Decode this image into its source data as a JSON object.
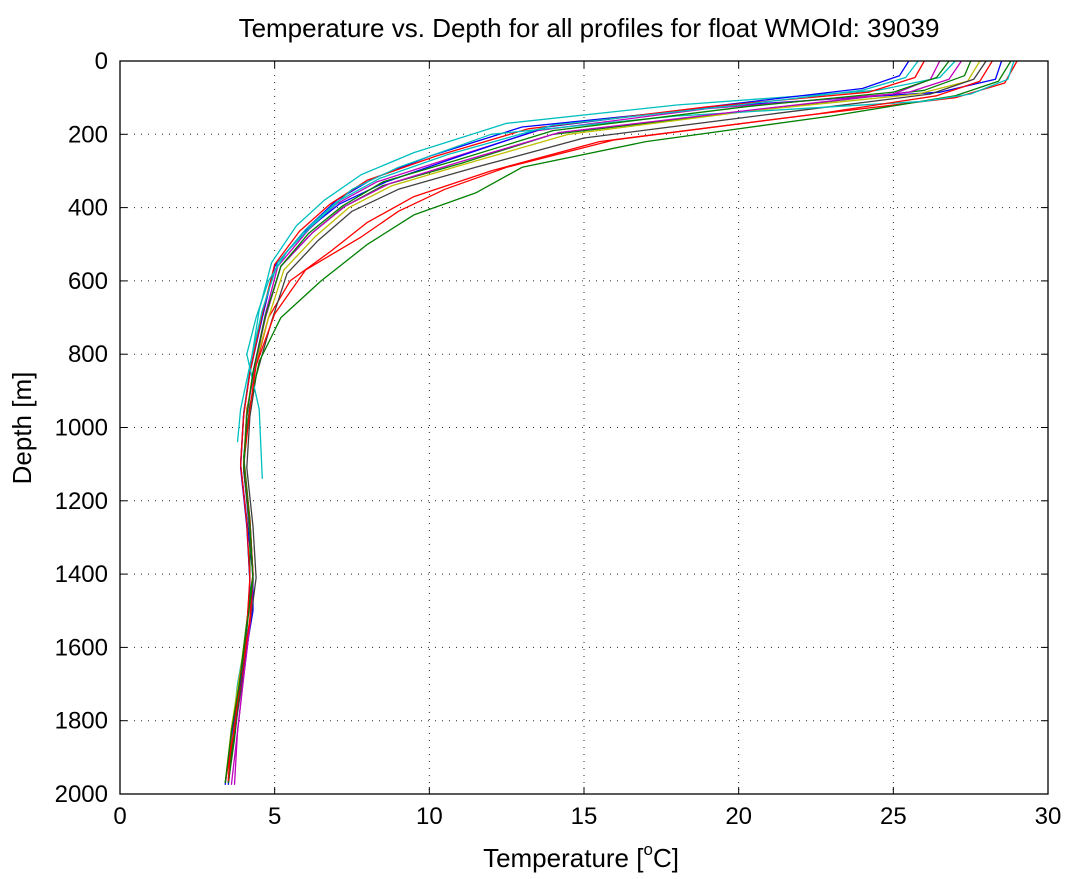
{
  "chart_data": {
    "type": "line",
    "title": "Temperature vs. Depth for all profiles for float WMOId: 39039",
    "xlabel_main": "Temperature [",
    "xlabel_sup": "o",
    "xlabel_tail": "C]",
    "ylabel": "Depth [m]",
    "xlim": [
      0,
      30
    ],
    "ylim": [
      0,
      2000
    ],
    "y_reversed": true,
    "grid": true,
    "x_ticks": [
      "0",
      "5",
      "10",
      "15",
      "20",
      "25",
      "30"
    ],
    "y_ticks": [
      "0",
      "200",
      "400",
      "600",
      "800",
      "1000",
      "1200",
      "1400",
      "1600",
      "1800",
      "2000"
    ],
    "series": [
      {
        "color": "#0000ff",
        "x": [
          28.5,
          28.3,
          26.5,
          20.0,
          13.0,
          10.0,
          8.2,
          7.0,
          6.0,
          5.0,
          4.6,
          4.2,
          4.0,
          3.9,
          4.1,
          4.3,
          4.3,
          4.1,
          3.8,
          3.6,
          3.5
        ],
        "y": [
          0,
          50,
          85,
          120,
          180,
          260,
          320,
          380,
          460,
          560,
          700,
          850,
          960,
          1100,
          1250,
          1400,
          1500,
          1600,
          1760,
          1900,
          1975
        ]
      },
      {
        "color": "#008000",
        "x": [
          27.5,
          27.3,
          26.0,
          21.0,
          14.0,
          11.0,
          8.5,
          7.2,
          6.2,
          5.2,
          4.7,
          4.3,
          4.1,
          4.0,
          4.2,
          4.2,
          4.1,
          3.9,
          3.7,
          3.5
        ],
        "y": [
          0,
          40,
          80,
          130,
          200,
          280,
          340,
          400,
          470,
          560,
          700,
          850,
          970,
          1100,
          1300,
          1450,
          1550,
          1700,
          1850,
          1970
        ]
      },
      {
        "color": "#ff0000",
        "x": [
          29.0,
          28.6,
          27.0,
          22.0,
          15.5,
          12.0,
          9.5,
          8.0,
          6.8,
          5.5,
          4.8,
          4.4,
          4.1,
          4.0,
          4.2,
          4.3,
          4.2,
          4.0,
          3.7,
          3.5
        ],
        "y": [
          0,
          60,
          100,
          150,
          220,
          300,
          370,
          440,
          520,
          600,
          700,
          830,
          950,
          1100,
          1250,
          1400,
          1520,
          1650,
          1800,
          1960
        ]
      },
      {
        "color": "#00bfbf",
        "x": [
          27.0,
          26.5,
          24.5,
          18.0,
          12.5,
          9.5,
          7.8,
          6.6,
          5.7,
          4.9,
          4.5,
          4.2,
          4.0,
          3.9,
          4.1,
          4.2,
          4.1,
          3.8,
          3.6,
          3.4
        ],
        "y": [
          0,
          45,
          80,
          120,
          170,
          250,
          310,
          380,
          450,
          550,
          680,
          840,
          960,
          1100,
          1260,
          1420,
          1560,
          1700,
          1850,
          1970
        ]
      },
      {
        "color": "#bf00bf",
        "x": [
          26.5,
          26.2,
          25.0,
          19.0,
          13.5,
          10.5,
          8.3,
          7.0,
          6.1,
          5.1,
          4.7,
          4.3,
          4.1,
          4.0,
          4.2,
          4.3,
          4.2,
          4.0,
          3.8,
          3.7
        ],
        "y": [
          0,
          50,
          90,
          130,
          190,
          270,
          330,
          390,
          460,
          560,
          690,
          850,
          970,
          1120,
          1280,
          1420,
          1540,
          1680,
          1830,
          1975
        ]
      },
      {
        "color": "#bfbf00",
        "x": [
          27.8,
          27.4,
          25.8,
          20.5,
          14.5,
          11.2,
          8.8,
          7.4,
          6.3,
          5.3,
          4.8,
          4.3,
          4.1,
          4.0,
          4.2,
          4.3,
          4.1,
          3.9,
          3.6,
          3.4
        ],
        "y": [
          0,
          55,
          90,
          135,
          200,
          280,
          340,
          400,
          480,
          570,
          700,
          850,
          960,
          1100,
          1260,
          1400,
          1530,
          1660,
          1820,
          1970
        ]
      },
      {
        "color": "#404040",
        "x": [
          28.0,
          27.6,
          26.2,
          21.5,
          15.0,
          11.5,
          9.0,
          7.5,
          6.4,
          5.4,
          4.9,
          4.4,
          4.2,
          4.1,
          4.3,
          4.4,
          4.2,
          4.0,
          3.7,
          3.5
        ],
        "y": [
          0,
          50,
          90,
          140,
          210,
          290,
          350,
          410,
          490,
          580,
          710,
          860,
          970,
          1110,
          1270,
          1410,
          1540,
          1670,
          1830,
          1970
        ]
      },
      {
        "color": "#0000ff",
        "x": [
          25.5,
          25.2,
          24.0,
          19.5,
          13.8,
          10.8,
          8.6,
          7.1,
          5.9,
          5.0,
          4.6,
          4.2,
          4.0,
          3.9,
          4.1,
          4.2,
          4.1,
          3.9,
          3.6,
          3.4
        ],
        "y": [
          0,
          40,
          75,
          120,
          180,
          265,
          330,
          390,
          470,
          560,
          690,
          850,
          965,
          1110,
          1270,
          1420,
          1550,
          1690,
          1840,
          1975
        ]
      },
      {
        "color": "#008000",
        "x": [
          28.8,
          28.4,
          27.0,
          23.0,
          17.0,
          13.0,
          11.5,
          9.5,
          8.0,
          6.5,
          5.2,
          4.5,
          4.2,
          4.0,
          4.2,
          4.3,
          4.1,
          3.9,
          3.7,
          3.5
        ],
        "y": [
          0,
          55,
          95,
          150,
          220,
          290,
          360,
          420,
          500,
          600,
          700,
          820,
          940,
          1080,
          1250,
          1400,
          1530,
          1670,
          1820,
          1970
        ]
      },
      {
        "color": "#ff0000",
        "x": [
          26.0,
          25.7,
          24.2,
          19.0,
          13.2,
          10.2,
          8.0,
          6.8,
          5.8,
          5.0,
          4.6,
          4.2,
          4.0,
          3.9,
          4.1,
          4.2,
          4.1,
          3.9,
          3.6,
          3.5
        ],
        "y": [
          0,
          45,
          85,
          125,
          185,
          260,
          325,
          390,
          465,
          555,
          690,
          850,
          965,
          1100,
          1260,
          1410,
          1545,
          1680,
          1830,
          1965
        ]
      },
      {
        "color": "#00bfbf",
        "x": [
          28.9,
          28.7,
          27.5,
          26.0,
          18.0,
          12.0,
          9.0,
          7.5,
          6.2,
          5.4,
          4.8,
          4.4,
          4.1,
          4.5,
          4.6
        ],
        "y": [
          0,
          50,
          90,
          110,
          150,
          200,
          290,
          350,
          450,
          520,
          600,
          700,
          800,
          950,
          1140
        ]
      },
      {
        "color": "#00bfbf",
        "x": [
          25.8,
          25.4,
          24.0,
          20.0,
          14.0,
          10.6,
          8.4,
          7.0,
          6.0,
          5.1,
          4.6,
          4.2,
          3.9,
          3.8
        ],
        "y": [
          0,
          45,
          80,
          120,
          175,
          255,
          320,
          385,
          460,
          550,
          680,
          830,
          950,
          1040
        ]
      },
      {
        "color": "#bf00bf",
        "x": [
          27.2,
          26.8,
          25.5,
          20.8,
          14.2,
          11.0,
          8.7,
          7.3,
          6.2,
          5.2,
          4.7,
          4.3,
          4.1,
          4.0,
          4.2,
          4.3,
          4.2,
          4.0,
          3.8,
          3.6
        ],
        "y": [
          0,
          50,
          85,
          130,
          195,
          275,
          335,
          395,
          470,
          560,
          700,
          855,
          970,
          1115,
          1275,
          1415,
          1540,
          1680,
          1830,
          1975
        ]
      },
      {
        "color": "#ff0000",
        "x": [
          28.2,
          27.8,
          26.4,
          22.5,
          16.0,
          12.5,
          10.5,
          9.0,
          7.8,
          6.0,
          5.0,
          4.4,
          4.2,
          4.0,
          4.2,
          4.3,
          4.2,
          3.9,
          3.7,
          3.4
        ],
        "y": [
          0,
          55,
          95,
          145,
          215,
          290,
          350,
          410,
          480,
          570,
          690,
          830,
          950,
          1100,
          1260,
          1400,
          1530,
          1670,
          1820,
          1970
        ]
      },
      {
        "color": "#008000",
        "x": [
          26.8,
          26.4,
          25.0,
          20.2,
          14.0,
          10.9,
          8.5,
          7.2,
          6.1,
          5.2,
          4.7,
          4.3,
          4.1,
          4.0,
          4.2,
          4.3,
          4.1,
          3.9,
          3.6,
          3.4
        ],
        "y": [
          0,
          45,
          85,
          125,
          190,
          270,
          330,
          395,
          470,
          560,
          695,
          850,
          965,
          1110,
          1270,
          1415,
          1545,
          1680,
          1830,
          1970
        ]
      }
    ]
  }
}
